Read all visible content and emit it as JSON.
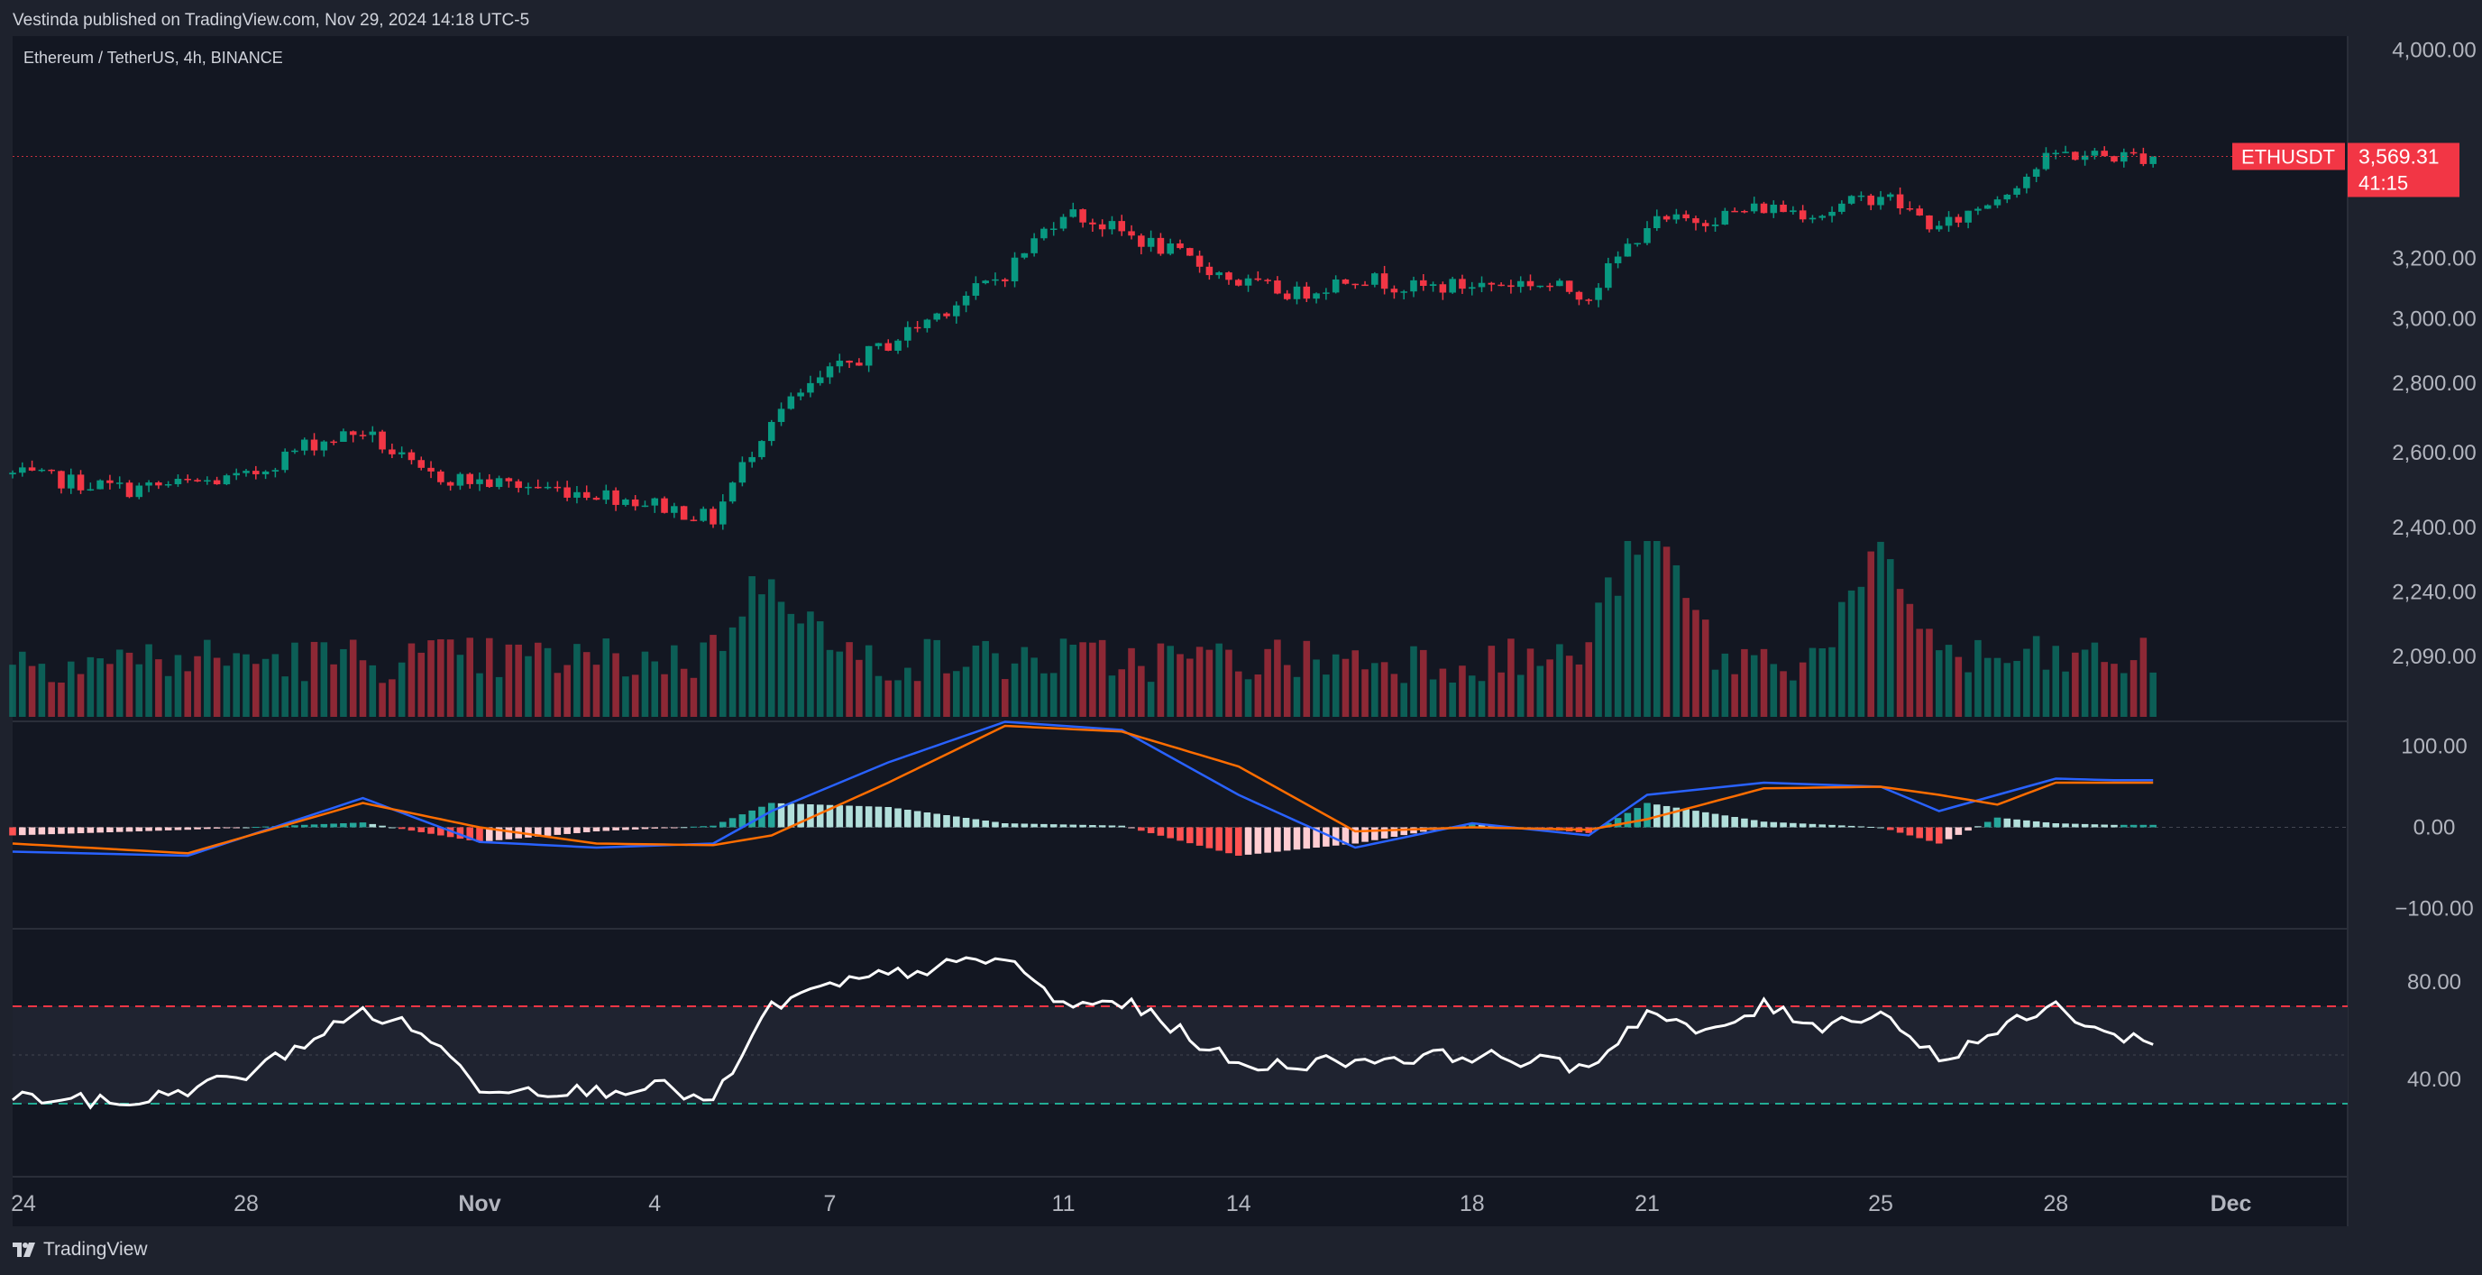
{
  "header": {
    "published_by": "Vestinda published on TradingView.com, Nov 29, 2024 14:18 UTC-5"
  },
  "legend": {
    "symbol_title": "Ethereum / TetherUS, 4h, BINANCE"
  },
  "footer": {
    "brand": "TradingView"
  },
  "colors": {
    "up": "#089981",
    "down": "#f23645",
    "background": "#131722",
    "panel_border": "#2a2e39",
    "macd": "#2962ff",
    "signal": "#ff6d00",
    "rsi": "#ffffff"
  },
  "chart_data": [
    {
      "type": "candlestick",
      "title": "Ethereum / TetherUS, 4h, BINANCE",
      "symbol": "ETHUSDT",
      "last_price": "3,569.31",
      "last_price_countdown": "41:15",
      "last_value": 3569.31,
      "y_ticks": [
        "4,000.00",
        "3,200.00",
        "3,000.00",
        "2,800.00",
        "2,600.00",
        "2,400.00",
        "2,240.00",
        "2,090.00"
      ],
      "y_scale": "log",
      "ylim": [
        1950,
        4060
      ],
      "x_ticks": [
        "24",
        "28",
        "Nov",
        "4",
        "7",
        "11",
        "14",
        "18",
        "21",
        "25",
        "28",
        "Dec"
      ],
      "xlim": [
        "2024-10-24",
        "2024-12-03"
      ],
      "sampled_close": {
        "x": [
          "Oct 24",
          "Oct 26",
          "Oct 28",
          "Oct 29",
          "Oct 30",
          "Oct 31",
          "Nov 1",
          "Nov 3",
          "Nov 4",
          "Nov 5",
          "Nov 6",
          "Nov 7",
          "Nov 8",
          "Nov 10",
          "Nov 11",
          "Nov 12",
          "Nov 13",
          "Nov 14",
          "Nov 15",
          "Nov 16",
          "Nov 17",
          "Nov 19",
          "Nov 20",
          "Nov 21",
          "Nov 22",
          "Nov 23",
          "Nov 24",
          "Nov 25",
          "Nov 26",
          "Nov 27",
          "Nov 28",
          "Nov 29"
        ],
        "y": [
          2540,
          2500,
          2530,
          2620,
          2660,
          2540,
          2520,
          2490,
          2460,
          2420,
          2700,
          2830,
          2920,
          3150,
          3370,
          3290,
          3210,
          3120,
          3080,
          3140,
          3100,
          3120,
          3080,
          3320,
          3340,
          3380,
          3360,
          3430,
          3300,
          3420,
          3580,
          3569.31
        ]
      }
    },
    {
      "type": "bar",
      "title": "Volume",
      "note": "volume bars colored by candle direction, no scale shown",
      "relative_peaks": [
        {
          "x": "Nov 6",
          "value": 1.0
        },
        {
          "x": "Nov 21",
          "value": 1.6
        },
        {
          "x": "Nov 25",
          "value": 1.1
        }
      ]
    },
    {
      "type": "line",
      "title": "MACD",
      "y_ticks": [
        "100.00",
        "0.00",
        "−100.00"
      ],
      "ylim": [
        -125,
        125
      ],
      "series": [
        {
          "name": "MACD",
          "x": [
            "Oct 24",
            "Oct 27",
            "Oct 30",
            "Nov 1",
            "Nov 3",
            "Nov 5",
            "Nov 6",
            "Nov 8",
            "Nov 10",
            "Nov 12",
            "Nov 14",
            "Nov 16",
            "Nov 18",
            "Nov 20",
            "Nov 21",
            "Nov 23",
            "Nov 25",
            "Nov 26",
            "Nov 27",
            "Nov 28",
            "Nov 29"
          ],
          "y": [
            -30,
            -35,
            36,
            -18,
            -25,
            -20,
            20,
            80,
            130,
            120,
            40,
            -25,
            5,
            -10,
            40,
            55,
            50,
            20,
            40,
            60,
            58
          ]
        },
        {
          "name": "Signal",
          "x": [
            "Oct 24",
            "Oct 27",
            "Oct 30",
            "Nov 1",
            "Nov 3",
            "Nov 5",
            "Nov 6",
            "Nov 8",
            "Nov 10",
            "Nov 12",
            "Nov 14",
            "Nov 16",
            "Nov 18",
            "Nov 20",
            "Nov 21",
            "Nov 23",
            "Nov 25",
            "Nov 26",
            "Nov 27",
            "Nov 28",
            "Nov 29"
          ],
          "y": [
            -20,
            -32,
            30,
            0,
            -20,
            -22,
            -10,
            55,
            125,
            118,
            75,
            -5,
            0,
            -3,
            10,
            48,
            50,
            40,
            28,
            55,
            55
          ]
        }
      ]
    },
    {
      "type": "line",
      "title": "RSI",
      "y_ticks": [
        "80.00",
        "40.00"
      ],
      "ylim": [
        0,
        100
      ],
      "bands": [
        70,
        30
      ],
      "series": [
        {
          "name": "RSI",
          "x": [
            "Oct 24",
            "Oct 26",
            "Oct 28",
            "Oct 29",
            "Oct 30",
            "Oct 31",
            "Nov 1",
            "Nov 3",
            "Nov 4",
            "Nov 5",
            "Nov 6",
            "Nov 7",
            "Nov 8",
            "Nov 10",
            "Nov 11",
            "Nov 12",
            "Nov 13",
            "Nov 14",
            "Nov 16",
            "Nov 18",
            "Nov 20",
            "Nov 21",
            "Nov 22",
            "Nov 23",
            "Nov 24",
            "Nov 25",
            "Nov 26",
            "Nov 27",
            "Nov 28",
            "Nov 29"
          ],
          "y": [
            33,
            30,
            42,
            55,
            68,
            60,
            37,
            35,
            38,
            30,
            70,
            78,
            83,
            90,
            70,
            72,
            60,
            45,
            48,
            50,
            45,
            68,
            58,
            70,
            62,
            68,
            48,
            60,
            70,
            57
          ]
        }
      ]
    }
  ]
}
